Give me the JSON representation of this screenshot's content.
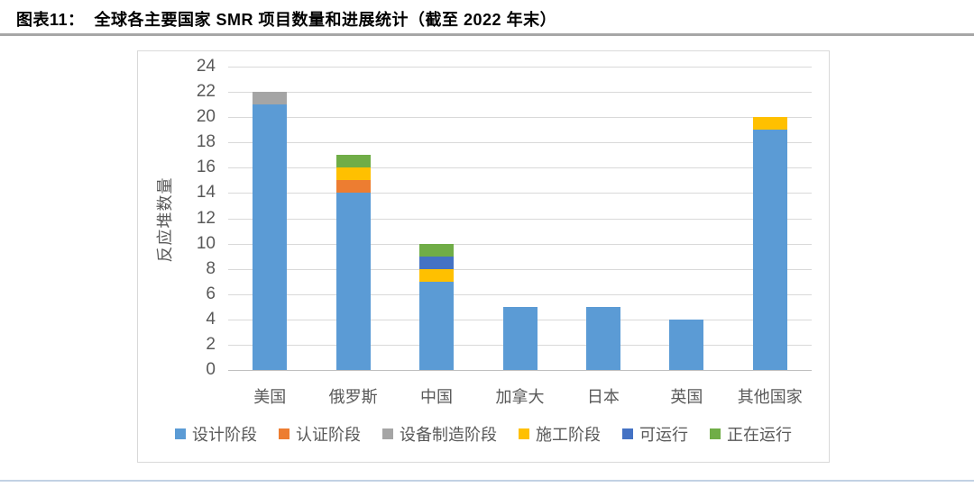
{
  "page": {
    "title": "图表11：  全球各主要国家 SMR 项目数量和进展统计（截至 2022 年末）"
  },
  "colors": {
    "title_text": "#000000",
    "title_rule": "#A6A6A6",
    "chart_border": "#D9D9D9",
    "gridline": "#D9D9D9",
    "axis_line": "#BFBFBF",
    "axis_text": "#595959",
    "bottom_rule_dark": "#44618C",
    "bottom_rule_light": "#C2D2E4",
    "background": "#FFFFFF"
  },
  "chart_data": {
    "type": "bar",
    "stacked": true,
    "title": "全球各主要国家 SMR 项目数量和进展统计（截至 2022 年末）",
    "ylabel": "反应堆数量",
    "xlabel": "",
    "ylim": [
      0,
      24
    ],
    "yticks": [
      0,
      2,
      4,
      6,
      8,
      10,
      12,
      14,
      16,
      18,
      20,
      22,
      24
    ],
    "grid": true,
    "legend_position": "bottom",
    "categories": [
      "美国",
      "俄罗斯",
      "中国",
      "加拿大",
      "日本",
      "英国",
      "其他国家"
    ],
    "series": [
      {
        "name": "设计阶段",
        "color": "#5B9BD5",
        "values": [
          21,
          14,
          7,
          5,
          5,
          4,
          19
        ]
      },
      {
        "name": "认证阶段",
        "color": "#ED7D31",
        "values": [
          0,
          1,
          0,
          0,
          0,
          0,
          0
        ]
      },
      {
        "name": "设备制造阶段",
        "color": "#A5A5A5",
        "values": [
          1,
          0,
          0,
          0,
          0,
          0,
          0
        ]
      },
      {
        "name": "施工阶段",
        "color": "#FFC000",
        "values": [
          0,
          1,
          1,
          0,
          0,
          0,
          1
        ]
      },
      {
        "name": "可运行",
        "color": "#4472C4",
        "values": [
          0,
          0,
          1,
          0,
          0,
          0,
          0
        ]
      },
      {
        "name": "正在运行",
        "color": "#70AD47",
        "values": [
          0,
          1,
          1,
          0,
          0,
          0,
          0
        ]
      }
    ]
  }
}
